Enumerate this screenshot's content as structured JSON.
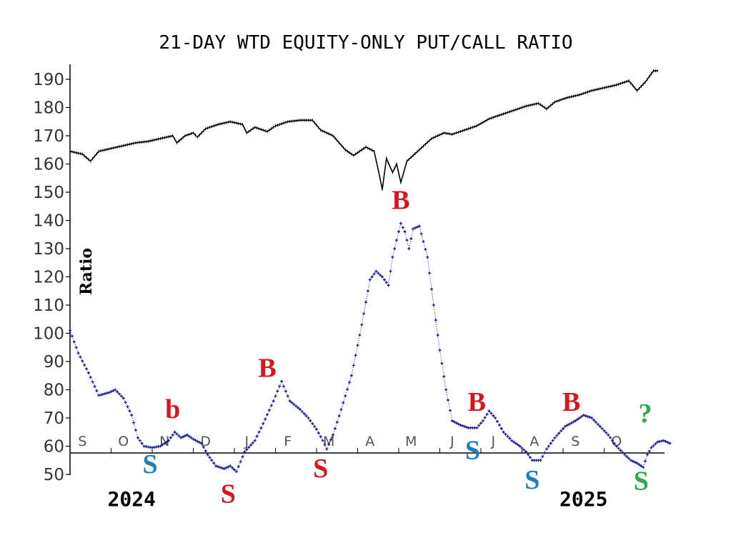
{
  "chart_data": {
    "type": "line",
    "title": "21-DAY WTD EQUITY-ONLY PUT/CALL RATIO",
    "ylabel": "Ratio",
    "ylim": [
      50,
      190
    ],
    "yticks": [
      50,
      60,
      70,
      80,
      90,
      100,
      110,
      120,
      130,
      140,
      150,
      160,
      170,
      180,
      190
    ],
    "x_unit": "month index (0 = start of Sep 2024)",
    "x_range": [
      0,
      14.3
    ],
    "month_labels": [
      {
        "label": "S",
        "x": 0.3
      },
      {
        "label": "O",
        "x": 1.3
      },
      {
        "label": "N",
        "x": 2.3
      },
      {
        "label": "D",
        "x": 3.3
      },
      {
        "label": "J",
        "x": 4.3
      },
      {
        "label": "F",
        "x": 5.3
      },
      {
        "label": "M",
        "x": 6.3
      },
      {
        "label": "A",
        "x": 7.3
      },
      {
        "label": "M",
        "x": 8.3
      },
      {
        "label": "J",
        "x": 9.3
      },
      {
        "label": "J",
        "x": 10.3
      },
      {
        "label": "A",
        "x": 11.3
      },
      {
        "label": "S",
        "x": 12.3
      },
      {
        "label": "O",
        "x": 13.3
      }
    ],
    "year_labels": [
      {
        "label": "2024",
        "x": 1.5
      },
      {
        "label": "2025",
        "x": 12.5
      }
    ],
    "series": [
      {
        "color": "#000000",
        "marker": "none",
        "points": [
          [
            0.0,
            164.5
          ],
          [
            0.3,
            163.5
          ],
          [
            0.5,
            161
          ],
          [
            0.7,
            164.5
          ],
          [
            1.0,
            165.5
          ],
          [
            1.3,
            166.5
          ],
          [
            1.6,
            167.5
          ],
          [
            1.9,
            168
          ],
          [
            2.2,
            169
          ],
          [
            2.5,
            170
          ],
          [
            2.6,
            167.5
          ],
          [
            2.8,
            170
          ],
          [
            3.0,
            171
          ],
          [
            3.1,
            169.5
          ],
          [
            3.3,
            172.5
          ],
          [
            3.6,
            174
          ],
          [
            3.9,
            175
          ],
          [
            4.2,
            174
          ],
          [
            4.3,
            171
          ],
          [
            4.5,
            173
          ],
          [
            4.8,
            171.5
          ],
          [
            5.0,
            173.5
          ],
          [
            5.3,
            175
          ],
          [
            5.6,
            175.5
          ],
          [
            5.9,
            175.5
          ],
          [
            6.1,
            172
          ],
          [
            6.4,
            170
          ],
          [
            6.7,
            165
          ],
          [
            6.9,
            163
          ],
          [
            7.2,
            166
          ],
          [
            7.4,
            164.5
          ],
          [
            7.5,
            158
          ],
          [
            7.6,
            151
          ],
          [
            7.7,
            162
          ],
          [
            7.85,
            157
          ],
          [
            7.95,
            160
          ],
          [
            8.05,
            153.5
          ],
          [
            8.2,
            161
          ],
          [
            8.5,
            165
          ],
          [
            8.8,
            169
          ],
          [
            9.1,
            171
          ],
          [
            9.3,
            170.5
          ],
          [
            9.6,
            172
          ],
          [
            9.9,
            173.5
          ],
          [
            10.2,
            176
          ],
          [
            10.5,
            177.5
          ],
          [
            10.8,
            179
          ],
          [
            11.1,
            180.5
          ],
          [
            11.4,
            181.5
          ],
          [
            11.6,
            179.5
          ],
          [
            11.8,
            182
          ],
          [
            12.1,
            183.5
          ],
          [
            12.4,
            184.5
          ],
          [
            12.7,
            186
          ],
          [
            13.0,
            187
          ],
          [
            13.3,
            188
          ],
          [
            13.6,
            189.5
          ],
          [
            13.8,
            186
          ],
          [
            14.0,
            189
          ],
          [
            14.2,
            193
          ],
          [
            14.3,
            193
          ]
        ]
      },
      {
        "color": "#1a1a9a",
        "marker": "plus",
        "points": [
          [
            0.0,
            101
          ],
          [
            0.2,
            93
          ],
          [
            0.45,
            86
          ],
          [
            0.7,
            78
          ],
          [
            0.95,
            79
          ],
          [
            1.1,
            80
          ],
          [
            1.3,
            77
          ],
          [
            1.5,
            71
          ],
          [
            1.65,
            63
          ],
          [
            1.8,
            60
          ],
          [
            2.0,
            59.5
          ],
          [
            2.2,
            60
          ],
          [
            2.4,
            62
          ],
          [
            2.55,
            65
          ],
          [
            2.7,
            63
          ],
          [
            2.85,
            64
          ],
          [
            3.0,
            62.5
          ],
          [
            3.2,
            61
          ],
          [
            3.35,
            57
          ],
          [
            3.55,
            53
          ],
          [
            3.75,
            52
          ],
          [
            3.9,
            53
          ],
          [
            4.05,
            51
          ],
          [
            4.25,
            58
          ],
          [
            4.5,
            62
          ],
          [
            4.7,
            68
          ],
          [
            4.95,
            76
          ],
          [
            5.15,
            83
          ],
          [
            5.35,
            76
          ],
          [
            5.6,
            73
          ],
          [
            5.8,
            70
          ],
          [
            6.0,
            66
          ],
          [
            6.15,
            62
          ],
          [
            6.25,
            59
          ],
          [
            6.4,
            64
          ],
          [
            6.6,
            73
          ],
          [
            6.85,
            85
          ],
          [
            7.1,
            103
          ],
          [
            7.3,
            119
          ],
          [
            7.45,
            122
          ],
          [
            7.6,
            120
          ],
          [
            7.75,
            117
          ],
          [
            7.85,
            127
          ],
          [
            7.95,
            133
          ],
          [
            8.05,
            139
          ],
          [
            8.15,
            136
          ],
          [
            8.25,
            130
          ],
          [
            8.35,
            137
          ],
          [
            8.5,
            138
          ],
          [
            8.7,
            127
          ],
          [
            8.85,
            110
          ],
          [
            9.0,
            94
          ],
          [
            9.15,
            80
          ],
          [
            9.3,
            69
          ],
          [
            9.5,
            67.5
          ],
          [
            9.7,
            66.5
          ],
          [
            9.9,
            66.5
          ],
          [
            10.05,
            69
          ],
          [
            10.2,
            72.5
          ],
          [
            10.35,
            70
          ],
          [
            10.55,
            65
          ],
          [
            10.75,
            62
          ],
          [
            10.95,
            60
          ],
          [
            11.1,
            58
          ],
          [
            11.25,
            55
          ],
          [
            11.45,
            55
          ],
          [
            11.6,
            59
          ],
          [
            11.8,
            63
          ],
          [
            12.05,
            67
          ],
          [
            12.3,
            69
          ],
          [
            12.5,
            71
          ],
          [
            12.7,
            70
          ],
          [
            12.9,
            67
          ],
          [
            13.1,
            64
          ],
          [
            13.3,
            60
          ],
          [
            13.5,
            57
          ],
          [
            13.65,
            55
          ],
          [
            13.8,
            54
          ],
          [
            13.95,
            52.5
          ],
          [
            14.05,
            57
          ],
          [
            14.15,
            59.5
          ],
          [
            14.3,
            61.5
          ],
          [
            14.45,
            62
          ],
          [
            14.6,
            61
          ]
        ]
      }
    ],
    "annotations": [
      {
        "text": "b",
        "x": 2.5,
        "y": 70,
        "color": "#d8161e"
      },
      {
        "text": "S",
        "x": 1.95,
        "y": 50.5,
        "color": "#1b7fbf"
      },
      {
        "text": "S",
        "x": 3.85,
        "y": 40,
        "color": "#d8161e"
      },
      {
        "text": "B",
        "x": 4.8,
        "y": 84.5,
        "color": "#d8161e"
      },
      {
        "text": "S",
        "x": 6.1,
        "y": 49,
        "color": "#d8161e"
      },
      {
        "text": "B",
        "x": 8.05,
        "y": 144,
        "color": "#d8161e"
      },
      {
        "text": "S",
        "x": 9.8,
        "y": 55.5,
        "color": "#1b7fbf"
      },
      {
        "text": "B",
        "x": 9.9,
        "y": 72.5,
        "color": "#d8161e"
      },
      {
        "text": "S",
        "x": 11.25,
        "y": 45,
        "color": "#1b7fbf"
      },
      {
        "text": "B",
        "x": 12.2,
        "y": 72.5,
        "color": "#d8161e"
      },
      {
        "text": "S",
        "x": 13.9,
        "y": 44.5,
        "color": "#2eaa4a"
      },
      {
        "text": "?",
        "x": 14.0,
        "y": 68.5,
        "color": "#2eaa4a"
      }
    ]
  }
}
